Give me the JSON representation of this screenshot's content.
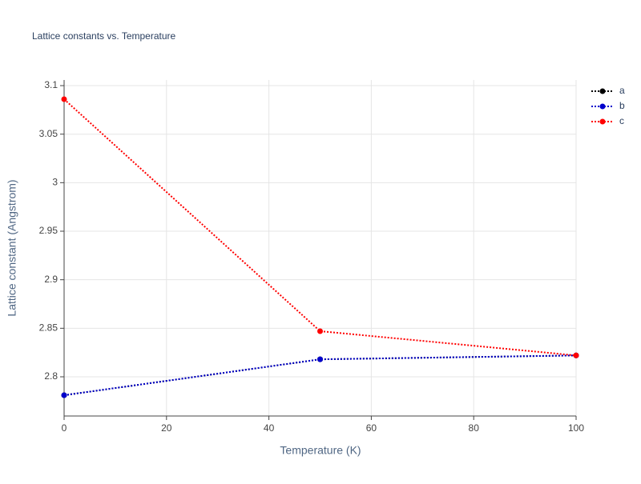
{
  "chart_data": {
    "type": "line",
    "title": "Lattice constants vs. Temperature",
    "x_label": "Temperature (K)",
    "y_label": "Lattice constant (Angstrom)",
    "x": [
      0,
      50,
      100
    ],
    "series": [
      {
        "name": "a",
        "color": "#000000",
        "values": [
          2.781,
          2.818,
          2.822
        ]
      },
      {
        "name": "b",
        "color": "#0000cc",
        "values": [
          2.781,
          2.818,
          2.822
        ]
      },
      {
        "name": "c",
        "color": "#ff0000",
        "values": [
          3.086,
          2.847,
          2.822
        ]
      }
    ],
    "xlim": [
      0,
      100
    ],
    "xticks": [
      0,
      20,
      40,
      60,
      80,
      100
    ],
    "ylim": [
      2.7596,
      3.1058
    ],
    "yticks": [
      2.8,
      2.85,
      2.9,
      2.95,
      3,
      3.05,
      3.1
    ],
    "grid": true,
    "legend": "right"
  }
}
